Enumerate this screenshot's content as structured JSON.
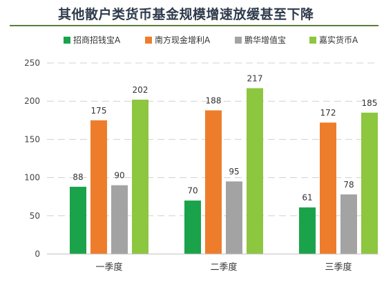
{
  "chart_data": {
    "type": "bar",
    "title": "其他散户类货币基金规模增速放缓甚至下降",
    "categories": [
      "一季度",
      "二季度",
      "三季度"
    ],
    "series": [
      {
        "name": "招商招钱宝A",
        "color": "#1aa34a",
        "values": [
          88,
          70,
          61
        ]
      },
      {
        "name": "南方现金增利A",
        "color": "#ee7d2b",
        "values": [
          175,
          188,
          172
        ]
      },
      {
        "name": "鹏华增值宝",
        "color": "#a3a3a3",
        "values": [
          90,
          95,
          78
        ]
      },
      {
        "name": "嘉实货币A",
        "color": "#8dc63f",
        "values": [
          202,
          217,
          185
        ]
      }
    ],
    "ylim": [
      0,
      250
    ],
    "yticks": [
      0,
      50,
      100,
      150,
      200,
      250
    ],
    "grid": true,
    "legend_position": "top"
  }
}
